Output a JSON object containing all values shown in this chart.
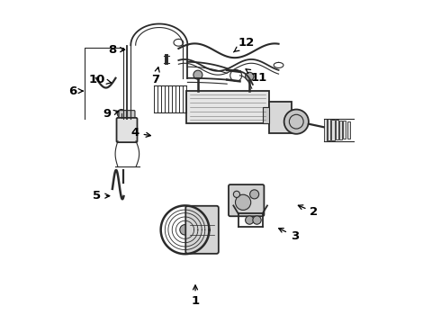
{
  "bg_color": "#ffffff",
  "line_color": "#2a2a2a",
  "label_color": "#000000",
  "figsize": [
    4.9,
    3.6
  ],
  "dpi": 100,
  "label_positions": {
    "1": [
      0.422,
      0.068,
      0.422,
      0.13
    ],
    "2": [
      0.79,
      0.345,
      0.73,
      0.37
    ],
    "3": [
      0.73,
      0.27,
      0.67,
      0.3
    ],
    "4": [
      0.235,
      0.59,
      0.295,
      0.58
    ],
    "5": [
      0.118,
      0.395,
      0.168,
      0.395
    ],
    "6": [
      0.042,
      0.72,
      0.085,
      0.72
    ],
    "7": [
      0.298,
      0.755,
      0.31,
      0.805
    ],
    "8": [
      0.165,
      0.848,
      0.215,
      0.848
    ],
    "9": [
      0.148,
      0.648,
      0.195,
      0.66
    ],
    "10": [
      0.118,
      0.755,
      0.165,
      0.745
    ],
    "11": [
      0.62,
      0.76,
      0.575,
      0.79
    ],
    "12": [
      0.58,
      0.87,
      0.54,
      0.84
    ]
  }
}
